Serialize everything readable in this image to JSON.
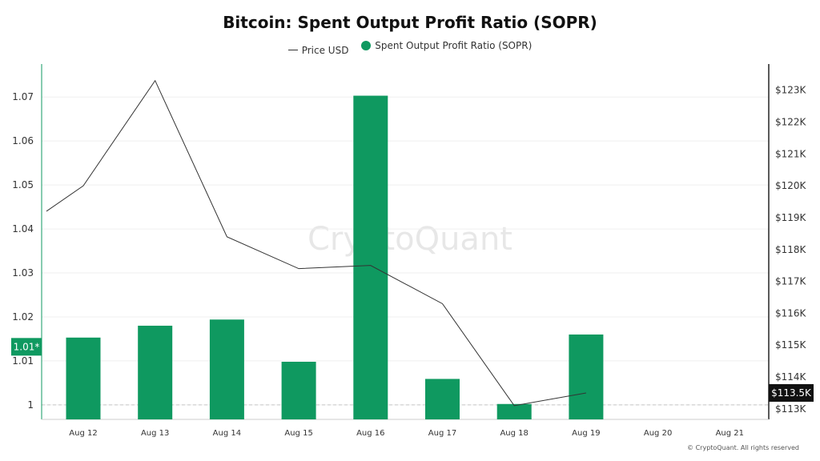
{
  "chart_data": {
    "type": "bar",
    "title": "Bitcoin: Spent Output Profit Ratio (SOPR)",
    "categories": [
      "Aug 12",
      "Aug 13",
      "Aug 14",
      "Aug 15",
      "Aug 16",
      "Aug 17",
      "Aug 18",
      "Aug 19",
      "Aug 20",
      "Aug 21"
    ],
    "series": [
      {
        "name": "Spent Output Profit Ratio (SOPR)",
        "type": "bar",
        "axis": "left",
        "color": "#0f9960",
        "values": [
          1.0153,
          1.018,
          1.0194,
          1.0098,
          1.0703,
          1.0059,
          1.0002,
          1.016,
          null,
          null
        ]
      },
      {
        "name": "Price USD",
        "type": "line",
        "axis": "right",
        "color": "#333333",
        "x_start": 11.65,
        "values": [
          119200,
          120000,
          123300,
          118400,
          117400,
          117500,
          116300,
          113100,
          113500,
          null
        ]
      }
    ],
    "left_axis": {
      "ylim": [
        0.9967,
        1.0775
      ],
      "ticks": [
        "1",
        "1.01",
        "1.02",
        "1.03",
        "1.04",
        "1.05",
        "1.06",
        "1.07"
      ],
      "tick_values": [
        1,
        1.01,
        1.02,
        1.03,
        1.04,
        1.05,
        1.06,
        1.07
      ]
    },
    "right_axis": {
      "ylim": [
        112670,
        123820
      ],
      "ticks": [
        "$113K",
        "$114K",
        "$115K",
        "$116K",
        "$117K",
        "$118K",
        "$119K",
        "$120K",
        "$121K",
        "$122K",
        "$123K"
      ],
      "tick_values": [
        113000,
        114000,
        115000,
        116000,
        117000,
        118000,
        119000,
        120000,
        121000,
        122000,
        123000
      ]
    },
    "left_marker": {
      "label": "1.01*",
      "value": 1.0132,
      "color": "#0f9960"
    },
    "right_marker": {
      "label": "$113.5K",
      "value": 113500
    },
    "reference_line": {
      "value": 1.0
    },
    "grid": true,
    "legend": "top-center"
  },
  "legend": [
    {
      "label": "Price USD",
      "kind": "line",
      "color": "#333333"
    },
    {
      "label": "Spent Output Profit Ratio (SOPR)",
      "kind": "dot",
      "color": "#0f9960"
    }
  ],
  "watermark": "CryptoQuant",
  "copyright": "© CryptoQuant. All rights reserved"
}
